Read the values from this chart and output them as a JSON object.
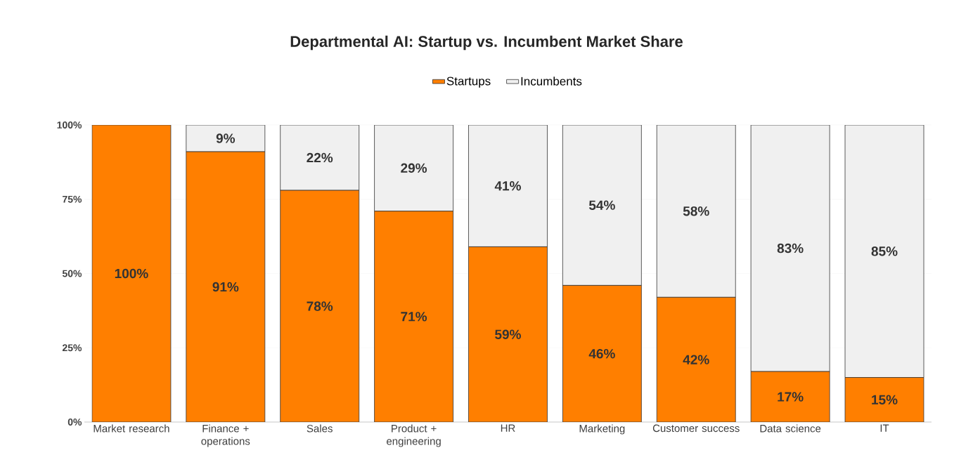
{
  "chart_data": {
    "type": "bar",
    "title": "Departmental AI: Startup vs. Incumbent Market Share",
    "categories": [
      "Market research",
      "Finance + operations",
      "Sales",
      "Product + engineering",
      "HR",
      "Marketing",
      "Customer success",
      "Data science",
      "IT"
    ],
    "stacked": true,
    "grid": "y",
    "legend": "top",
    "ylim": [
      0,
      100
    ],
    "yticks": [
      {
        "value": 0,
        "label": "0%"
      },
      {
        "value": 25,
        "label": "25%"
      },
      {
        "value": 50,
        "label": "50%"
      },
      {
        "value": 75,
        "label": "75%"
      },
      {
        "value": 100,
        "label": "100%"
      }
    ],
    "series": [
      {
        "name": "Startups",
        "color": "#ff7f00",
        "values": [
          100,
          91,
          78,
          71,
          59,
          46,
          42,
          17,
          15
        ],
        "value_labels": [
          "100%",
          "91%",
          "78%",
          "71%",
          "59%",
          "46%",
          "42%",
          "17%",
          "15%"
        ]
      },
      {
        "name": "Incumbents",
        "color": "#f0f0f0",
        "values": [
          0,
          9,
          22,
          29,
          41,
          54,
          58,
          83,
          85
        ],
        "value_labels": [
          null,
          "9%",
          "22%",
          "29%",
          "41%",
          "54%",
          "58%",
          "83%",
          "85%"
        ]
      }
    ]
  }
}
